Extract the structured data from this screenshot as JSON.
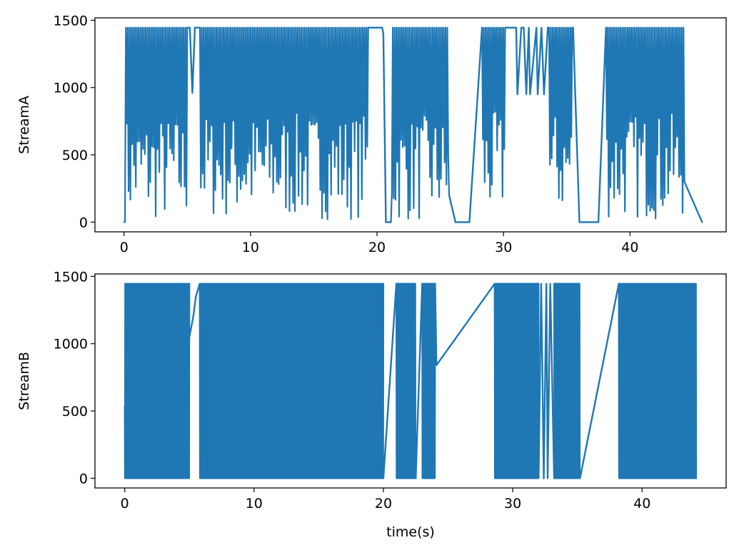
{
  "chart_data": [
    {
      "type": "line",
      "title": "",
      "xlabel": "",
      "ylabel": "StreamA",
      "xlim": [
        -2.3,
        47.6
      ],
      "ylim": [
        -72,
        1518
      ],
      "xticks": [
        0,
        10,
        20,
        30,
        40
      ],
      "yticks": [
        0,
        500,
        1000,
        1500
      ],
      "grid": false,
      "line_color": "#1f77b4",
      "series": [
        {
          "segments": [
            {
              "x": [
                0.0,
                0.4,
                0.7,
                1.0,
                1.3,
                1.6,
                1.9,
                2.2,
                2.5,
                2.8,
                3.1,
                3.4,
                3.7,
                4.0,
                4.3,
                4.6,
                4.9,
                5.0
              ],
              "y": [
                0,
                1445,
                80,
                1445,
                300,
                1445,
                60,
                1445,
                200,
                1445,
                40,
                1445,
                150,
                1445,
                20,
                1445,
                60,
                1445
              ],
              "dense": true,
              "ymin": 0,
              "ymax": 1445
            },
            {
              "x": [
                5.0,
                5.2,
                5.4,
                5.6,
                5.8,
                6.0
              ],
              "y": [
                1445,
                1445,
                960,
                1445,
                1445,
                1445
              ]
            },
            {
              "x": [
                6.0,
                6.5,
                7.0,
                7.5,
                8.0,
                9.0,
                10.0,
                11.0,
                12.0,
                13.0,
                14.0,
                15.0,
                16.0,
                17.0,
                18.0,
                19.0,
                19.3
              ],
              "y": [
                1445,
                40,
                1445,
                60,
                1445,
                20,
                1445,
                100,
                1445,
                30,
                1445,
                60,
                1445,
                40,
                1445,
                120,
                1445
              ],
              "dense": true,
              "ymin": 20,
              "ymax": 1445
            },
            {
              "x": [
                19.3,
                19.5,
                19.7,
                20.0,
                20.3,
                20.4,
                20.5,
                20.7,
                20.8,
                21.0,
                21.1
              ],
              "y": [
                1445,
                1445,
                1445,
                1445,
                1445,
                1445,
                1400,
                0,
                0,
                0,
                0
              ]
            },
            {
              "x": [
                21.1,
                21.5,
                22.0,
                22.5,
                23.0,
                23.5,
                24.0,
                24.5,
                25.0,
                25.5,
                25.7
              ],
              "y": [
                0,
                1445,
                40,
                1445,
                60,
                1445,
                30,
                1445,
                100,
                1445,
                200
              ],
              "dense": true,
              "ymin": 0,
              "ymax": 1445
            },
            {
              "x": [
                25.7,
                26.2,
                27.3,
                28.3
              ],
              "y": [
                200,
                0,
                0,
                1445
              ]
            },
            {
              "x": [
                28.3,
                28.6,
                29.0,
                29.4,
                29.8,
                30.2
              ],
              "y": [
                1445,
                40,
                1445,
                100,
                1445,
                1445
              ],
              "dense": true,
              "ymin": 30,
              "ymax": 1445
            },
            {
              "x": [
                30.2,
                30.4,
                30.6,
                31.0,
                31.1,
                31.4,
                31.6,
                31.8,
                32.0,
                32.1,
                32.6,
                32.7,
                33.0,
                33.2,
                33.5,
                33.6
              ],
              "y": [
                1445,
                1445,
                1445,
                1445,
                950,
                1445,
                1445,
                950,
                1445,
                950,
                1445,
                950,
                1445,
                950,
                1445,
                1445
              ]
            },
            {
              "x": [
                33.6,
                34.0,
                34.4,
                34.8,
                35.2,
                35.5
              ],
              "y": [
                1445,
                120,
                1445,
                40,
                1445,
                1445
              ],
              "dense": true,
              "ymin": 30,
              "ymax": 1445
            },
            {
              "x": [
                35.5,
                36.0,
                37.5,
                38.1
              ],
              "y": [
                1445,
                0,
                0,
                1445
              ]
            },
            {
              "x": [
                38.1,
                38.5,
                39.0,
                39.5,
                40.0,
                40.5,
                41.0,
                41.5,
                42.0,
                42.5,
                43.0,
                43.5,
                44.0,
                44.3
              ],
              "y": [
                1445,
                60,
                1445,
                40,
                1445,
                30,
                1445,
                50,
                1445,
                20,
                1445,
                80,
                1445,
                300
              ],
              "dense": true,
              "ymin": 20,
              "ymax": 1445
            },
            {
              "x": [
                44.3,
                45.7
              ],
              "y": [
                300,
                0
              ]
            }
          ]
        }
      ]
    },
    {
      "type": "line",
      "title": "",
      "xlabel": "time(s)",
      "ylabel": "StreamB",
      "xlim": [
        -2.3,
        46.5
      ],
      "ylim": [
        -72,
        1518
      ],
      "xticks": [
        0,
        10,
        20,
        30,
        40
      ],
      "yticks": [
        0,
        500,
        1000,
        1500
      ],
      "grid": false,
      "line_color": "#1f77b4",
      "series": [
        {
          "segments": [
            {
              "x": [
                0.0,
                0.2,
                1.0,
                2.0,
                3.0,
                4.0,
                5.0
              ],
              "y": [
                540,
                0,
                1445,
                0,
                1445,
                0,
                1445
              ],
              "dense": true,
              "fill": true,
              "ymin": 0,
              "ymax": 1445
            },
            {
              "x": [
                5.0,
                5.3,
                5.5,
                5.8
              ],
              "y": [
                1050,
                1200,
                1350,
                1445
              ]
            },
            {
              "x": [
                5.8,
                8.0,
                10.0,
                12.0,
                14.0,
                16.0,
                18.0,
                19.5,
                20.0
              ],
              "y": [
                1445,
                0,
                1445,
                0,
                1445,
                0,
                1445,
                0,
                1445
              ],
              "dense": true,
              "fill": true,
              "ymin": 0,
              "ymax": 1445
            },
            {
              "x": [
                20.0,
                21.0
              ],
              "y": [
                0,
                1445
              ]
            },
            {
              "x": [
                21.0,
                21.5,
                22.0,
                22.5
              ],
              "y": [
                1445,
                0,
                1445,
                0
              ],
              "dense": true,
              "fill": true,
              "ymin": 0,
              "ymax": 1445
            },
            {
              "x": [
                22.5,
                23.0
              ],
              "y": [
                0,
                1445
              ]
            },
            {
              "x": [
                23.0,
                23.5,
                24.0
              ],
              "y": [
                1445,
                0,
                1445
              ],
              "dense": true,
              "fill": true,
              "ymin": 0,
              "ymax": 1445
            },
            {
              "x": [
                24.0,
                24.1,
                28.6
              ],
              "y": [
                1445,
                840,
                1445
              ]
            },
            {
              "x": [
                28.6,
                29.5,
                30.5,
                31.5,
                32.0
              ],
              "y": [
                1445,
                0,
                1445,
                0,
                1445
              ],
              "dense": true,
              "fill": true,
              "ymin": 0,
              "ymax": 1445
            },
            {
              "x": [
                32.0,
                32.2,
                32.4,
                32.6,
                32.7,
                32.9,
                33.2
              ],
              "y": [
                0,
                1445,
                0,
                1445,
                0,
                1445,
                0
              ]
            },
            {
              "x": [
                33.2,
                34.0,
                35.0,
                35.2
              ],
              "y": [
                1445,
                0,
                1445,
                0
              ],
              "dense": true,
              "fill": true,
              "ymin": 0,
              "ymax": 1445
            },
            {
              "x": [
                35.2,
                38.2
              ],
              "y": [
                0,
                1445
              ]
            },
            {
              "x": [
                38.2,
                40.0,
                42.0,
                44.2
              ],
              "y": [
                1445,
                0,
                1445,
                0
              ],
              "dense": true,
              "fill": true,
              "ymin": 0,
              "ymax": 1445
            }
          ]
        }
      ]
    }
  ]
}
